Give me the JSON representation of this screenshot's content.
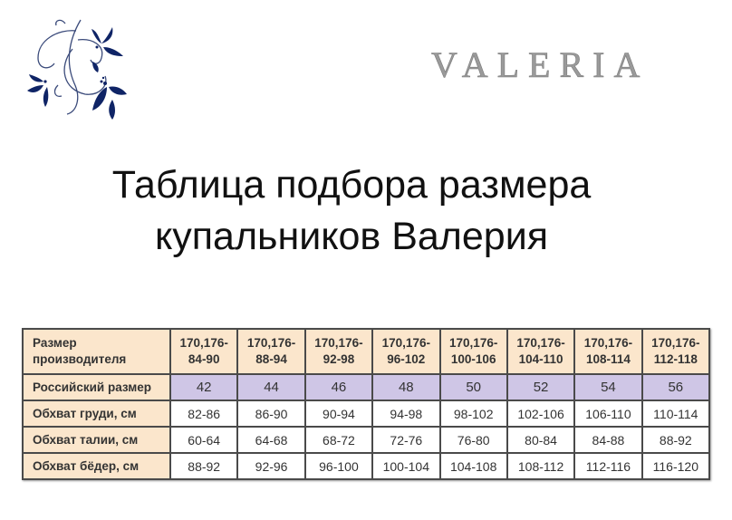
{
  "brand": {
    "logo_text": "VALERIA",
    "ornament_color": "#0f2466"
  },
  "title": {
    "line1": "Таблица подбора размера",
    "line2": "купальников Валерия"
  },
  "table": {
    "colors": {
      "header_bg": "#fbe6cc",
      "russian_row_bg": "#cfc6e6"
    },
    "header_label": [
      "Размер",
      "производителя"
    ],
    "manufacturer_sizes": [
      [
        "170,176-",
        "84-90"
      ],
      [
        "170,176-",
        "88-94"
      ],
      [
        "170,176-",
        "92-98"
      ],
      [
        "170,176-",
        "96-102"
      ],
      [
        "170,176-",
        "100-106"
      ],
      [
        "170,176-",
        "104-110"
      ],
      [
        "170,176-",
        "108-114"
      ],
      [
        "170,176-",
        "112-118"
      ]
    ],
    "rows": [
      {
        "label": "Российский размер",
        "values": [
          "42",
          "44",
          "46",
          "48",
          "50",
          "52",
          "54",
          "56"
        ]
      },
      {
        "label": "Обхват груди, см",
        "values": [
          "82-86",
          "86-90",
          "90-94",
          "94-98",
          "98-102",
          "102-106",
          "106-110",
          "110-114"
        ]
      },
      {
        "label": "Обхват талии, см",
        "values": [
          "60-64",
          "64-68",
          "68-72",
          "72-76",
          "76-80",
          "80-84",
          "84-88",
          "88-92"
        ]
      },
      {
        "label": "Обхват бёдер, см",
        "values": [
          "88-92",
          "92-96",
          "96-100",
          "100-104",
          "104-108",
          "108-112",
          "112-116",
          "116-120"
        ]
      }
    ]
  }
}
